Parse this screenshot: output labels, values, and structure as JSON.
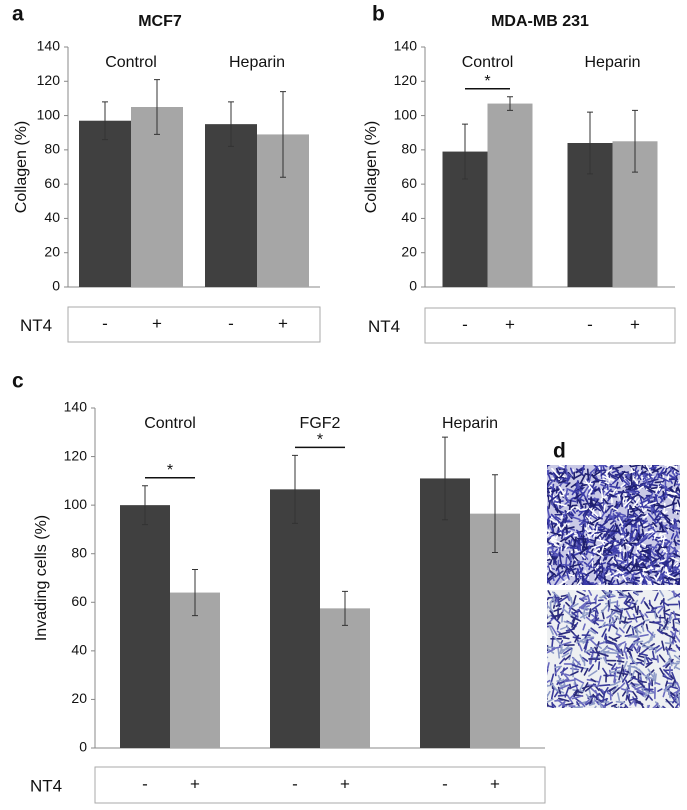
{
  "chart_data": [
    {
      "type": "bar",
      "panel": "a",
      "title": "MCF7",
      "ylabel": "Collagen (%)",
      "row_label": "NT4",
      "categories": [
        "Control",
        "Heparin"
      ],
      "series": [
        {
          "name": "-",
          "color": "#404040",
          "values": [
            97,
            95
          ],
          "errors": [
            11,
            13
          ]
        },
        {
          "name": "+",
          "color": "#a6a6a6",
          "values": [
            105,
            89
          ],
          "errors": [
            16,
            25
          ]
        }
      ],
      "ylim": [
        0,
        140
      ],
      "yticks": [
        0,
        20,
        40,
        60,
        80,
        100,
        120,
        140
      ],
      "significance": []
    },
    {
      "type": "bar",
      "panel": "b",
      "title": "MDA-MB 231",
      "ylabel": "Collagen (%)",
      "row_label": "NT4",
      "categories": [
        "Control",
        "Heparin"
      ],
      "series": [
        {
          "name": "-",
          "color": "#404040",
          "values": [
            79,
            84
          ],
          "errors": [
            16,
            18
          ]
        },
        {
          "name": "+",
          "color": "#a6a6a6",
          "values": [
            107,
            85
          ],
          "errors": [
            4,
            18
          ]
        }
      ],
      "ylim": [
        0,
        140
      ],
      "yticks": [
        0,
        20,
        40,
        60,
        80,
        100,
        120,
        140
      ],
      "significance": [
        {
          "category": "Control",
          "label": "*"
        }
      ]
    },
    {
      "type": "bar",
      "panel": "c",
      "ylabel": "Invading cells (%)",
      "row_label": "NT4",
      "categories": [
        "Control",
        "FGF2",
        "Heparin"
      ],
      "series": [
        {
          "name": "-",
          "color": "#404040",
          "values": [
            100,
            106.5,
            111
          ],
          "errors": [
            8,
            14,
            17
          ]
        },
        {
          "name": "+",
          "color": "#a6a6a6",
          "values": [
            64,
            57.5,
            96.5
          ],
          "errors": [
            9.5,
            7,
            16
          ]
        }
      ],
      "ylim": [
        0,
        140
      ],
      "yticks": [
        0,
        20,
        40,
        60,
        80,
        100,
        120,
        140
      ],
      "significance": [
        {
          "category": "Control",
          "label": "*"
        },
        {
          "category": "FGF2",
          "label": "*"
        }
      ]
    }
  ],
  "image_panel": {
    "panel": "d"
  }
}
